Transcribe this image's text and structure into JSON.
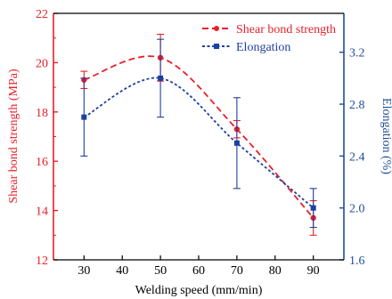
{
  "chart_data": {
    "type": "line",
    "title": "",
    "xlabel": "Welding speed (mm/min)",
    "ylabel_left": "Shear bond strength (MPa)",
    "ylabel_right": "Elongation (%)",
    "x": [
      30,
      50,
      70,
      90
    ],
    "xlim": [
      22,
      98
    ],
    "xticks": [
      "30",
      "40",
      "50",
      "60",
      "70",
      "80",
      "90"
    ],
    "ylim_left": [
      12,
      22
    ],
    "yticks_left": [
      "12",
      "14",
      "16",
      "18",
      "20",
      "22"
    ],
    "ylim_right": [
      1.6,
      3.5
    ],
    "yticks_right": [
      "1.6",
      "2.0",
      "2.4",
      "2.8",
      "3.2"
    ],
    "legend_position": "top-right",
    "grid": false,
    "series": [
      {
        "name": "Shear bond strength",
        "axis": "left",
        "color": "#e8202a",
        "line_style": "dashed",
        "marker": "circle",
        "values": [
          19.3,
          20.2,
          17.3,
          13.7
        ],
        "errors": [
          0.35,
          0.95,
          0.35,
          0.7
        ]
      },
      {
        "name": "Elongation",
        "axis": "right",
        "color": "#1f3f9e",
        "line_style": "dotted",
        "marker": "square",
        "values": [
          2.7,
          3.0,
          2.5,
          2.0
        ],
        "errors": [
          0.3,
          0.3,
          0.35,
          0.15
        ]
      }
    ],
    "axis_colors": {
      "left": "#e8202a",
      "right": "#1f4e96",
      "bottom": "#000000"
    }
  }
}
